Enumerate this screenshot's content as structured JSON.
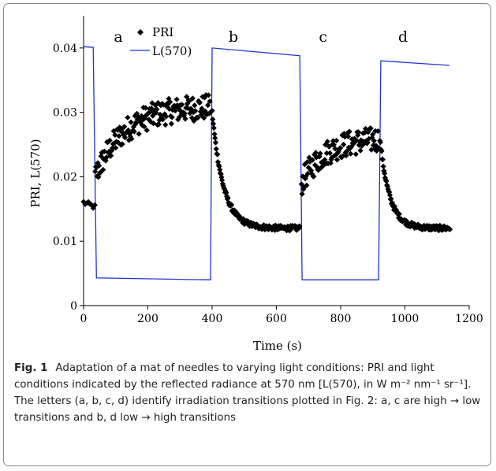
{
  "caption": {
    "label": "Fig. 1",
    "text": "Adaptation of a mat of needles to varying light conditions: PRI and light conditions indicated by the reflected radiance at 570 nm [L(570), in W m⁻² nm⁻¹ sr⁻¹]. The letters (a, b, c, d) identify irradiation transitions plotted in Fig. 2: a, c are high → low transitions and b, d low → high transitions"
  },
  "chart_data": {
    "type": "scatter",
    "xlabel": "Time (s)",
    "ylabel": "PRI, L(570)",
    "xlim": [
      0,
      1200
    ],
    "ylim": [
      0,
      0.045
    ],
    "x_ticks": [
      0,
      200,
      400,
      600,
      800,
      1000,
      1200
    ],
    "x_tick_labels": [
      "0",
      "200",
      "400",
      "600",
      "800",
      "1000",
      "1200"
    ],
    "y_ticks": [
      0,
      0.01,
      0.02,
      0.03,
      0.04
    ],
    "y_tick_labels": [
      "0",
      "0.01",
      "0.02",
      "0.03",
      "0.04"
    ],
    "grid": false,
    "legend": {
      "placement": "top-center",
      "entries": [
        {
          "label": "PRI",
          "marker": "diamond"
        },
        {
          "label": "L(570)",
          "marker": "line"
        }
      ]
    },
    "annotations": [
      {
        "text": "a",
        "x": 45
      },
      {
        "text": "b",
        "x": 402
      },
      {
        "text": "c",
        "x": 683
      },
      {
        "text": "d",
        "x": 930
      }
    ],
    "colors": {
      "PRI": "#000000",
      "L570": "#2233cc"
    },
    "series": [
      {
        "name": "PRI",
        "style": "markers",
        "segments": [
          {
            "x0": 0,
            "x1": 35,
            "start": 0.016,
            "end": 0.0153,
            "noise": 0.0004,
            "count": 8
          },
          {
            "x0": 36,
            "x1": 395,
            "start": 0.02,
            "end": 0.031,
            "noise": 0.002,
            "count": 175,
            "tau": 90
          },
          {
            "x0": 400,
            "x1": 672,
            "start": 0.03,
            "end": 0.012,
            "noise": 0.0004,
            "count": 150,
            "tau": 35
          },
          {
            "x0": 678,
            "x1": 918,
            "start": 0.019,
            "end": 0.026,
            "noise": 0.002,
            "count": 120,
            "tau": 70
          },
          {
            "x0": 922,
            "x1": 1140,
            "start": 0.026,
            "end": 0.012,
            "noise": 0.0004,
            "count": 120,
            "tau": 30
          }
        ]
      },
      {
        "name": "L(570)",
        "style": "line",
        "points": [
          [
            0,
            0.0402
          ],
          [
            30,
            0.0401
          ],
          [
            40,
            0.0043
          ],
          [
            395,
            0.004
          ],
          [
            400,
            0.04
          ],
          [
            673,
            0.0388
          ],
          [
            680,
            0.004
          ],
          [
            918,
            0.004
          ],
          [
            925,
            0.038
          ],
          [
            1138,
            0.0373
          ]
        ]
      }
    ]
  }
}
